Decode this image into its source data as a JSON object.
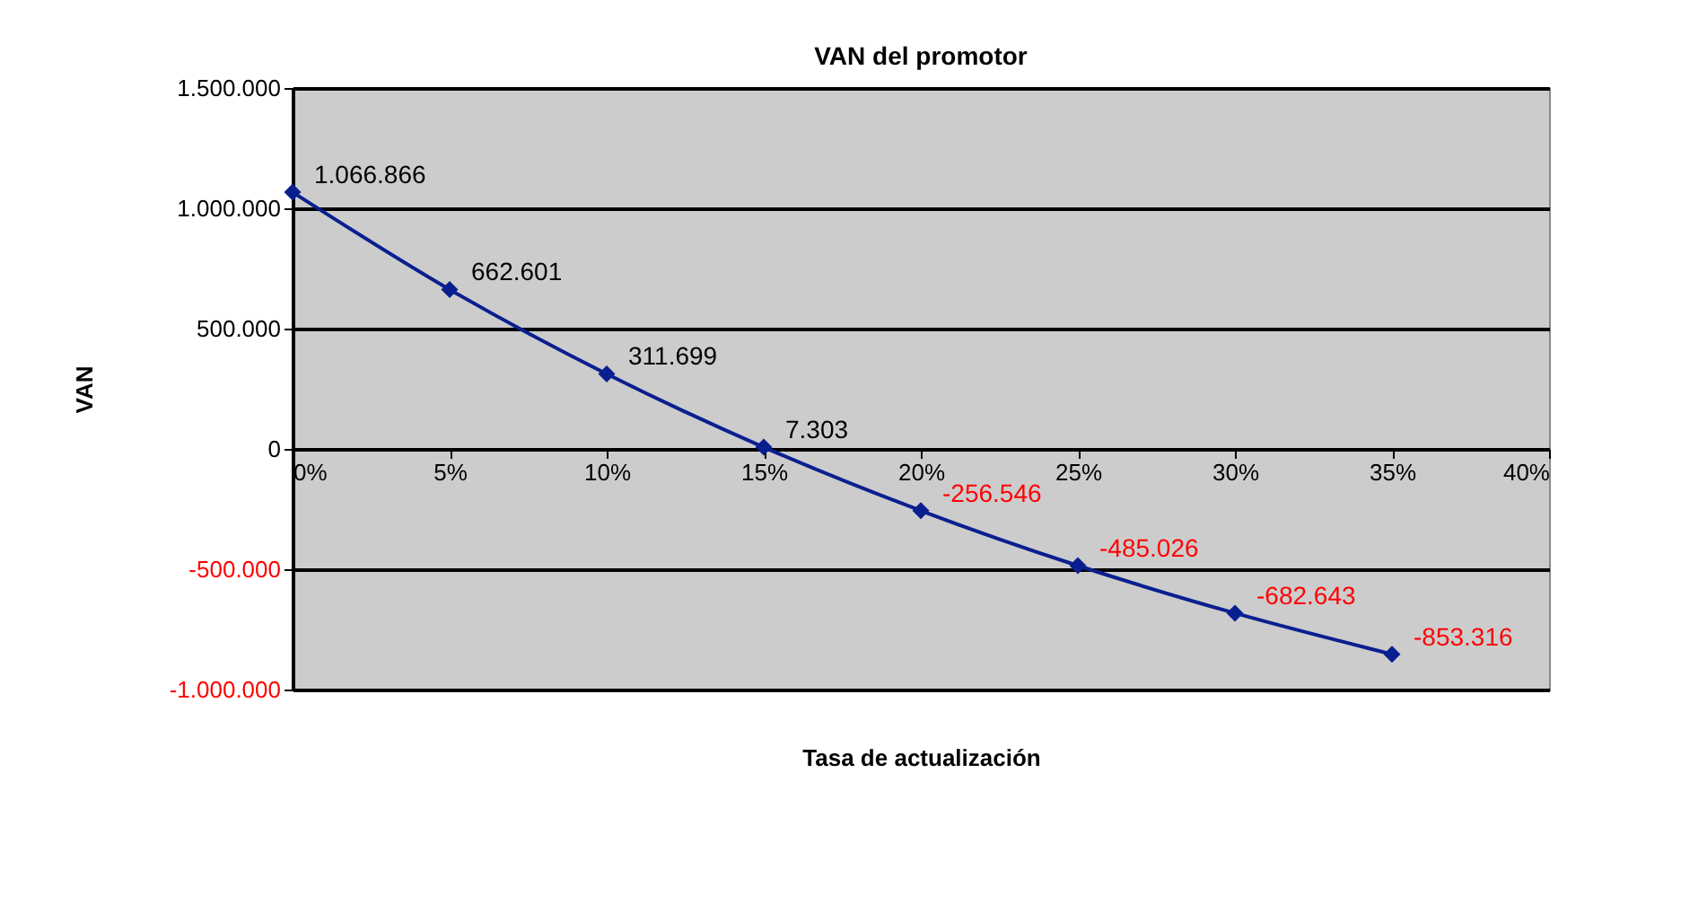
{
  "chart_data": {
    "type": "line",
    "title": "VAN del promotor",
    "xlabel": "Tasa de actualización",
    "ylabel": "VAN",
    "x": [
      0,
      5,
      10,
      15,
      20,
      25,
      30,
      35
    ],
    "series": [
      {
        "color": "#0a1f8f",
        "values": [
          1066866,
          662601,
          311699,
          7303,
          -256546,
          -485026,
          -682643,
          -853316
        ],
        "value_labels": [
          "1.066.866",
          "662.601",
          "311.699",
          "7.303",
          "-256.546",
          "-485.026",
          "-682.643",
          "-853.316"
        ]
      }
    ],
    "xlim": [
      0,
      40
    ],
    "xticks": [
      {
        "value": 0,
        "label": "0%"
      },
      {
        "value": 5,
        "label": "5%"
      },
      {
        "value": 10,
        "label": "10%"
      },
      {
        "value": 15,
        "label": "15%"
      },
      {
        "value": 20,
        "label": "20%"
      },
      {
        "value": 25,
        "label": "25%"
      },
      {
        "value": 30,
        "label": "30%"
      },
      {
        "value": 35,
        "label": "35%"
      },
      {
        "value": 40,
        "label": "40%"
      }
    ],
    "ylim": [
      -1000000,
      1500000
    ],
    "yticks": [
      {
        "value": -1000000,
        "label": "-1.000.000"
      },
      {
        "value": -500000,
        "label": "-500.000"
      },
      {
        "value": 0,
        "label": "0"
      },
      {
        "value": 500000,
        "label": "500.000"
      },
      {
        "value": 1000000,
        "label": "1.000.000"
      },
      {
        "value": 1500000,
        "label": "1.500.000"
      }
    ],
    "grid": "y",
    "marker": "diamond",
    "line_style": "solid"
  }
}
